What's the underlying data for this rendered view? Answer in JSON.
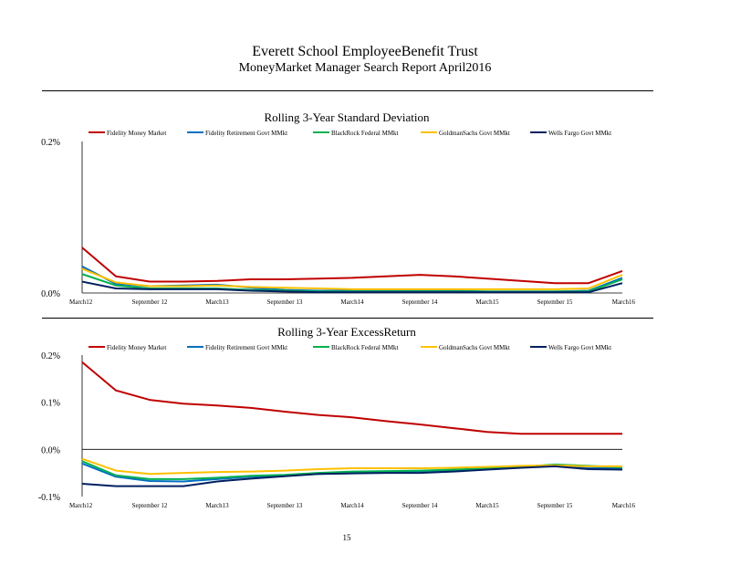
{
  "header": {
    "title": "Everett School EmployeeBenefit Trust",
    "subtitle": "MoneyMarket Manager Search Report April2016"
  },
  "footer": {
    "page_number": "15"
  },
  "series_colors": [
    "#c00000",
    "#0070c0",
    "#00b050",
    "#ffc000",
    "#002060"
  ],
  "chart_data": [
    {
      "type": "line",
      "title": "Rolling 3-Year Standard Deviation",
      "legend_position": "top",
      "grid": false,
      "ylim": [
        0,
        0.2
      ],
      "y_ticks": [
        0,
        0.2
      ],
      "y_tick_labels": [
        "0.0%",
        "0.2%"
      ],
      "categories": [
        "March12",
        "September 12",
        "March13",
        "September 13",
        "March14",
        "September 14",
        "March15",
        "September 15",
        "March16"
      ],
      "x": [
        0,
        0.5,
        1,
        1.5,
        2,
        2.5,
        3,
        3.5,
        4,
        4.5,
        5,
        5.5,
        6,
        6.5,
        7,
        7.5,
        8
      ],
      "series": [
        {
          "name": "Fidelity Money Market",
          "values": [
            0.06,
            0.022,
            0.015,
            0.015,
            0.016,
            0.018,
            0.018,
            0.019,
            0.02,
            0.022,
            0.024,
            0.022,
            0.019,
            0.016,
            0.013,
            0.013,
            0.029
          ]
        },
        {
          "name": "Fidelity Retirement Govt MMkt",
          "values": [
            0.035,
            0.012,
            0.009,
            0.01,
            0.011,
            0.007,
            0.004,
            0.003,
            0.003,
            0.003,
            0.003,
            0.003,
            0.002,
            0.002,
            0.002,
            0.003,
            0.02
          ]
        },
        {
          "name": "BlackRock Federal MMkt",
          "values": [
            0.025,
            0.01,
            0.006,
            0.006,
            0.006,
            0.004,
            0.003,
            0.002,
            0.002,
            0.002,
            0.002,
            0.002,
            0.002,
            0.002,
            0.002,
            0.002,
            0.018
          ]
        },
        {
          "name": "GoldmanSachs Govt MMkt",
          "values": [
            0.032,
            0.014,
            0.009,
            0.009,
            0.01,
            0.008,
            0.007,
            0.006,
            0.005,
            0.005,
            0.005,
            0.005,
            0.005,
            0.005,
            0.005,
            0.006,
            0.024
          ]
        },
        {
          "name": "Wells Fargo Govt MMkt",
          "values": [
            0.015,
            0.006,
            0.005,
            0.005,
            0.005,
            0.003,
            0.002,
            0.001,
            0.001,
            0.001,
            0.001,
            0.001,
            0.001,
            0.001,
            0.001,
            0.001,
            0.013
          ]
        }
      ]
    },
    {
      "type": "line",
      "title": "Rolling 3-Year ExcessReturn",
      "legend_position": "top",
      "grid": false,
      "ylim": [
        -0.1,
        0.2
      ],
      "y_ticks": [
        -0.1,
        0,
        0.1,
        0.2
      ],
      "y_tick_labels": [
        "-0.1%",
        "0.0%",
        "0.1%",
        "0.2%"
      ],
      "categories": [
        "March12",
        "September 12",
        "March13",
        "September 13",
        "March14",
        "September 14",
        "March15",
        "September 15",
        "March16"
      ],
      "x": [
        0,
        0.5,
        1,
        1.5,
        2,
        2.5,
        3,
        3.5,
        4,
        4.5,
        5,
        5.5,
        6,
        6.5,
        7,
        7.5,
        8
      ],
      "series": [
        {
          "name": "Fidelity Money Market",
          "values": [
            0.185,
            0.125,
            0.105,
            0.097,
            0.093,
            0.088,
            0.08,
            0.073,
            0.068,
            0.06,
            0.053,
            0.045,
            0.037,
            0.033,
            0.033,
            0.033,
            0.033
          ]
        },
        {
          "name": "Fidelity Retirement Govt MMkt",
          "values": [
            -0.03,
            -0.058,
            -0.067,
            -0.068,
            -0.063,
            -0.058,
            -0.055,
            -0.052,
            -0.05,
            -0.048,
            -0.046,
            -0.044,
            -0.04,
            -0.036,
            -0.035,
            -0.04,
            -0.04
          ]
        },
        {
          "name": "BlackRock Federal MMkt",
          "values": [
            -0.025,
            -0.055,
            -0.063,
            -0.063,
            -0.06,
            -0.056,
            -0.054,
            -0.05,
            -0.047,
            -0.046,
            -0.045,
            -0.043,
            -0.04,
            -0.037,
            -0.032,
            -0.035,
            -0.038
          ]
        },
        {
          "name": "GoldmanSachs Govt MMkt",
          "values": [
            -0.02,
            -0.045,
            -0.052,
            -0.05,
            -0.048,
            -0.047,
            -0.045,
            -0.042,
            -0.04,
            -0.04,
            -0.04,
            -0.039,
            -0.037,
            -0.035,
            -0.034,
            -0.036,
            -0.036
          ]
        },
        {
          "name": "Wells Fargo Govt MMkt",
          "values": [
            -0.073,
            -0.078,
            -0.078,
            -0.078,
            -0.068,
            -0.062,
            -0.057,
            -0.052,
            -0.051,
            -0.05,
            -0.05,
            -0.047,
            -0.043,
            -0.039,
            -0.036,
            -0.042,
            -0.043
          ]
        }
      ]
    }
  ]
}
